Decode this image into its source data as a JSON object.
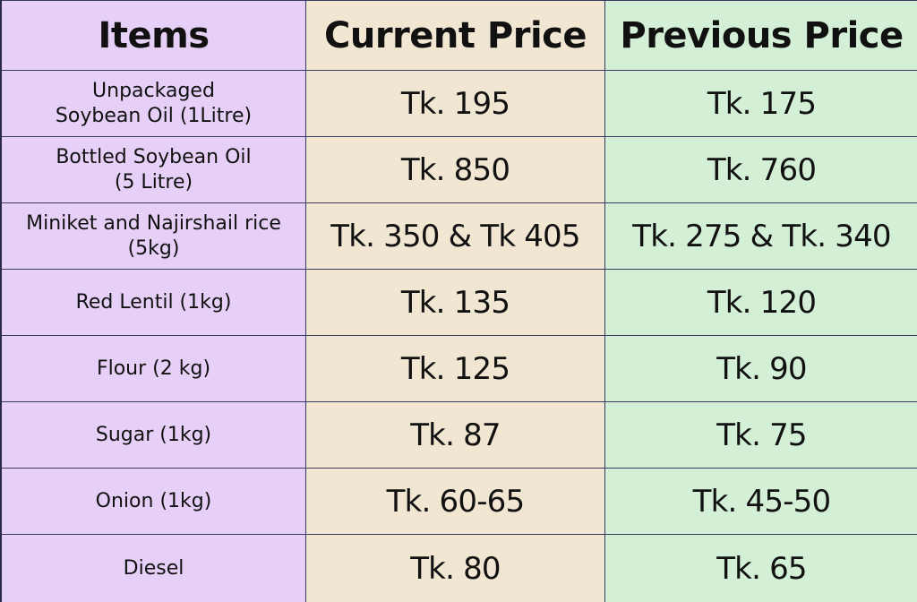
{
  "chart_data": {
    "type": "table",
    "columns": [
      "Items",
      "Current Price",
      "Previous Price"
    ],
    "rows": [
      {
        "item": "Unpackaged\nSoybean Oil (1Litre)",
        "current": "Tk. 195",
        "previous": "Tk. 175"
      },
      {
        "item": "Bottled Soybean Oil\n(5 Litre)",
        "current": "Tk. 850",
        "previous": "Tk. 760"
      },
      {
        "item": "Miniket and Najirshail rice\n(5kg)",
        "current": "Tk. 350 & Tk 405",
        "previous": "Tk. 275 & Tk. 340"
      },
      {
        "item": "Red Lentil (1kg)",
        "current": "Tk. 135",
        "previous": "Tk. 120"
      },
      {
        "item": "Flour (2 kg)",
        "current": "Tk. 125",
        "previous": "Tk. 90"
      },
      {
        "item": "Sugar (1kg)",
        "current": "Tk. 87",
        "previous": "Tk. 75"
      },
      {
        "item": "Onion (1kg)",
        "current": "Tk. 60-65",
        "previous": "Tk. 45-50"
      },
      {
        "item": "Diesel",
        "current": "Tk. 80",
        "previous": "Tk. 65"
      }
    ]
  },
  "colors": {
    "items_column": "#e6d0f7",
    "current_column": "#f0e6d2",
    "previous_column": "#d3f0d6",
    "grid_lines": "#3a3960"
  }
}
